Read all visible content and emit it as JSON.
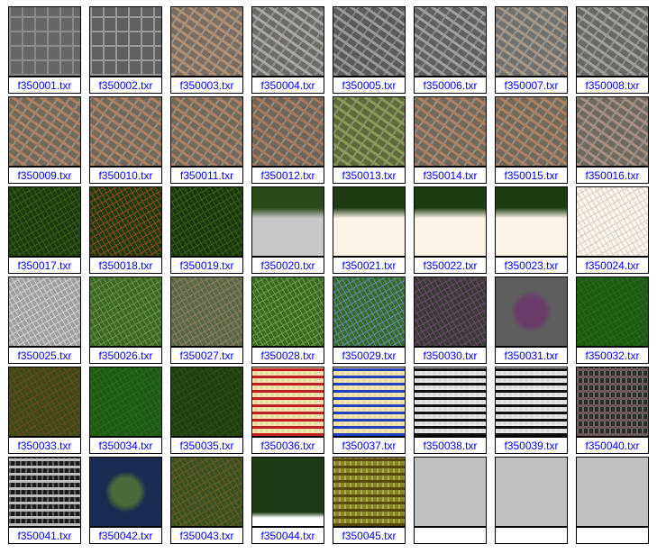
{
  "items": [
    {
      "label": "f350001.txr",
      "color": "#666666",
      "accent": "#8a8a8a",
      "style": "grid"
    },
    {
      "label": "f350002.txr",
      "color": "#606060",
      "accent": "#9a9a9a",
      "style": "grid"
    },
    {
      "label": "f350003.txr",
      "color": "#7a6e62",
      "accent": "#b09070",
      "style": "urban"
    },
    {
      "label": "f350004.txr",
      "color": "#6e6a66",
      "accent": "#a8a8a8",
      "style": "urban"
    },
    {
      "label": "f350005.txr",
      "color": "#5a5a5a",
      "accent": "#9a9a9a",
      "style": "urban"
    },
    {
      "label": "f350006.txr",
      "color": "#606060",
      "accent": "#a0a0a0",
      "style": "urban"
    },
    {
      "label": "f350007.txr",
      "color": "#707070",
      "accent": "#a89888",
      "style": "urban"
    },
    {
      "label": "f350008.txr",
      "color": "#6a6862",
      "accent": "#a0a0a0",
      "style": "urban"
    },
    {
      "label": "f350009.txr",
      "color": "#726a5a",
      "accent": "#b08060",
      "style": "urban"
    },
    {
      "label": "f350010.txr",
      "color": "#726a5a",
      "accent": "#b08060",
      "style": "urban"
    },
    {
      "label": "f350011.txr",
      "color": "#726a5a",
      "accent": "#b08060",
      "style": "urban"
    },
    {
      "label": "f350012.txr",
      "color": "#6e6658",
      "accent": "#a87858",
      "style": "urban"
    },
    {
      "label": "f350013.txr",
      "color": "#5e6a3a",
      "accent": "#8a9a5a",
      "style": "urban"
    },
    {
      "label": "f350014.txr",
      "color": "#726a5a",
      "accent": "#b08060",
      "style": "urban"
    },
    {
      "label": "f350015.txr",
      "color": "#726a5a",
      "accent": "#b08060",
      "style": "urban"
    },
    {
      "label": "f350016.txr",
      "color": "#6e6a60",
      "accent": "#a89080",
      "style": "urban"
    },
    {
      "label": "f350017.txr",
      "color": "#1e3a10",
      "accent": "#3a5a18",
      "style": "noise"
    },
    {
      "label": "f350018.txr",
      "color": "#1e3a10",
      "accent": "#8a4a20",
      "style": "noise"
    },
    {
      "label": "f350019.txr",
      "color": "#1c3810",
      "accent": "#3a5a18",
      "style": "noise"
    },
    {
      "label": "f350020.txr",
      "color": "#c8c8c8",
      "accent": "#2a4a18",
      "style": "topforest"
    },
    {
      "label": "f350021.txr",
      "color": "#fbf4e6",
      "accent": "#1e3a10",
      "style": "topforest"
    },
    {
      "label": "f350022.txr",
      "color": "#fbf4e6",
      "accent": "#1e3a10",
      "style": "topforest"
    },
    {
      "label": "f350023.txr",
      "color": "#fbf4e6",
      "accent": "#1e3a10",
      "style": "topforest"
    },
    {
      "label": "f350024.txr",
      "color": "#fbf5ea",
      "accent": "#d8d0c8",
      "style": "noise"
    },
    {
      "label": "f350025.txr",
      "color": "#a0a0a0",
      "accent": "#d0d0d0",
      "style": "noise"
    },
    {
      "label": "f350026.txr",
      "color": "#3a6a20",
      "accent": "#6a8a50",
      "style": "noise"
    },
    {
      "label": "f350027.txr",
      "color": "#5a6a40",
      "accent": "#8a7a6a",
      "style": "noise"
    },
    {
      "label": "f350028.txr",
      "color": "#3a6a20",
      "accent": "#6a9a50",
      "style": "noise"
    },
    {
      "label": "f350029.txr",
      "color": "#3a6a2a",
      "accent": "#5a8aa0",
      "style": "noise"
    },
    {
      "label": "f350030.txr",
      "color": "#3a3a36",
      "accent": "#6a4a6a",
      "style": "noise"
    },
    {
      "label": "f350031.txr",
      "color": "#5e5e5e",
      "accent": "#6a3a6a",
      "style": "center"
    },
    {
      "label": "f350032.txr",
      "color": "#1e5a12",
      "accent": "#2a6a18",
      "style": "noise"
    },
    {
      "label": "f350033.txr",
      "color": "#3a4a18",
      "accent": "#6a4a20",
      "style": "noise"
    },
    {
      "label": "f350034.txr",
      "color": "#1e5a14",
      "accent": "#2a6a1a",
      "style": "noise"
    },
    {
      "label": "f350035.txr",
      "color": "#1e4010",
      "accent": "#2a5018",
      "style": "noise"
    },
    {
      "label": "f350036.txr",
      "color": "#f0e0a0",
      "accent": "#c02020",
      "style": "stripes"
    },
    {
      "label": "f350037.txr",
      "color": "#f0e0a0",
      "accent": "#2040c0",
      "style": "stripes"
    },
    {
      "label": "f350038.txr",
      "color": "#e0e0e0",
      "accent": "#101010",
      "style": "stripes"
    },
    {
      "label": "f350039.txr",
      "color": "#e0e0e0",
      "accent": "#101010",
      "style": "stripes"
    },
    {
      "label": "f350040.txr",
      "color": "#2a2a2a",
      "accent": "#6a5a5a",
      "style": "stripes"
    },
    {
      "label": "f350041.txr",
      "color": "#1a1a1a",
      "accent": "#c0c0c0",
      "style": "stripes"
    },
    {
      "label": "f350042.txr",
      "color": "#1a2a50",
      "accent": "#4a6a3a",
      "style": "center"
    },
    {
      "label": "f350043.txr",
      "color": "#3a5020",
      "accent": "#6a5a28",
      "style": "noise"
    },
    {
      "label": "f350044.txr",
      "color": "#1e3a14",
      "accent": "#ffffff",
      "style": "bottomwhite"
    },
    {
      "label": "f350045.txr",
      "color": "#8a8420",
      "accent": "#5a4a10",
      "style": "stripes"
    },
    {
      "label": "",
      "color": "#c0c0c0",
      "accent": "#c0c0c0",
      "style": "empty"
    },
    {
      "label": "",
      "color": "#c0c0c0",
      "accent": "#c0c0c0",
      "style": "empty"
    },
    {
      "label": "",
      "color": "#c0c0c0",
      "accent": "#c0c0c0",
      "style": "empty"
    }
  ]
}
